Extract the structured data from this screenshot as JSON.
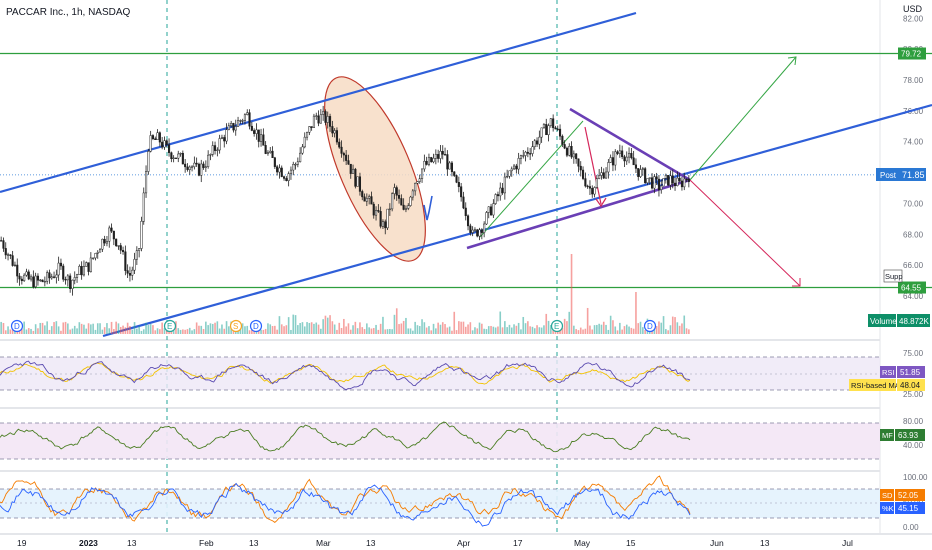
{
  "header": {
    "title": "PACCAR Inc., 1h, NASDAQ"
  },
  "colors": {
    "accent_blue": "#2962ff",
    "trend_blue": "#2f5fd8",
    "level_green": "#2e9e3e",
    "wedge_purple": "#6a3fb5",
    "arrow_red": "#d5275b",
    "arrow_green": "#35a645",
    "ellipse_fill": "#f7dcc4",
    "ellipse_stroke": "#c0392b",
    "post_tag": "#2a78d4",
    "volume_tag": "#0e8f68",
    "rsi_tag": "#7e57c2",
    "rsi_ma_tag": "#ffe14d",
    "mf_tag": "#2e7d32",
    "sd_tag": "#f57c00",
    "k_tag": "#2962ff"
  },
  "chart_data": {
    "type": "line",
    "price_panel": {
      "currency": "USD",
      "ylim": [
        64,
        82.8
      ],
      "y_ticks": [
        "82.00",
        "80.00",
        "78.00",
        "76.00",
        "74.00",
        "72.00",
        "70.00",
        "68.00",
        "66.00",
        "64.00"
      ],
      "x_ticks": [
        "19",
        "2023",
        "13",
        "Feb",
        "13",
        "Mar",
        "13",
        "Apr",
        "17",
        "May",
        "15",
        "Jun",
        "13",
        "Jul"
      ],
      "series": [
        {
          "values": [
            67.6,
            66.4,
            65.3,
            65.0,
            64.9,
            65.2,
            65.8,
            64.9,
            65.6,
            66.0,
            67.3,
            68.2,
            67.4,
            65.2,
            66.8,
            73.9,
            74.2,
            73.4,
            73.0,
            72.6,
            72.1,
            72.8,
            73.8,
            74.6,
            75.2,
            75.8,
            74.6,
            73.3,
            72.5,
            71.8,
            72.6,
            74.2,
            75.7,
            75.5,
            74.6,
            73.2,
            71.6,
            70.5,
            69.5,
            68.4,
            70.9,
            69.3,
            71.3,
            72.4,
            72.8,
            73.3,
            71.6,
            70.2,
            67.9,
            68.6,
            69.8,
            71.0,
            72.2,
            73.0,
            73.7,
            74.5,
            75.3,
            74.2,
            73.1,
            72.0,
            70.9,
            71.8,
            72.6,
            73.5,
            72.8,
            72.0,
            71.5,
            71.1,
            71.6,
            71.2,
            71.85
          ]
        }
      ],
      "last_price": "71.85",
      "last_price_label": "Post",
      "levels": [
        {
          "value": 79.72,
          "label": "79.72"
        },
        {
          "value": 64.55,
          "label": "64.55"
        }
      ],
      "support_label": "Supp",
      "event_markers": [
        "D",
        "E",
        "S",
        "D",
        "E",
        "D"
      ]
    },
    "volume": {
      "label": "Volume",
      "value": "48.872K"
    },
    "rsi": {
      "ylim": [
        10,
        90
      ],
      "y_ticks": [
        "75.00",
        "50.00",
        "25.00"
      ],
      "bands": [
        30,
        70
      ],
      "label": "RSI",
      "value": "51.85",
      "ma_label": "RSI-based MA",
      "ma_value": "48.04"
    },
    "mfi": {
      "ylim": [
        0,
        100
      ],
      "y_ticks": [
        "80.00",
        "60.00",
        "40.00"
      ],
      "bands": [
        20,
        80
      ],
      "label": "MF",
      "value": "63.93"
    },
    "stoch": {
      "ylim": [
        -10,
        110
      ],
      "y_ticks": [
        "100.00",
        "50.00",
        "0.00"
      ],
      "bands": [
        20,
        80
      ],
      "d_label": "SD",
      "d_value": "52.05",
      "k_label": "%K",
      "k_value": "45.15"
    }
  }
}
